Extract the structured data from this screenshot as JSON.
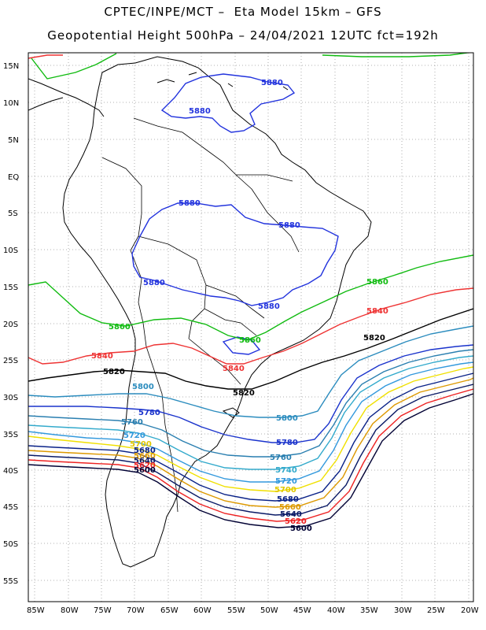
{
  "title_line1": "CPTEC/INPE/MCT –  Eta Model 15km – GFS",
  "title_line2": "Geopotential Height 500hPa – 24/04/2021 12UTC fct=192h",
  "lat_labels": [
    "15N",
    "10N",
    "5N",
    "EQ",
    "5S",
    "10S",
    "15S",
    "20S",
    "25S",
    "30S",
    "35S",
    "40S",
    "45S",
    "50S",
    "55S"
  ],
  "lon_labels": [
    "85W",
    "80W",
    "75W",
    "70W",
    "65W",
    "60W",
    "55W",
    "50W",
    "45W",
    "40W",
    "35W",
    "30W",
    "25W",
    "20W"
  ],
  "contours": [
    {
      "value": "5880",
      "color": "#2233dd",
      "labels": [
        "5880",
        "5880",
        "5880",
        "5880",
        "5880",
        "5880"
      ]
    },
    {
      "value": "5860",
      "color": "#11bb11",
      "labels": [
        "5860",
        "5860",
        "5860"
      ]
    },
    {
      "value": "5840",
      "color": "#ee3333",
      "labels": [
        "5840",
        "5840",
        "5840"
      ]
    },
    {
      "value": "5820",
      "color": "#000000",
      "labels": [
        "5820",
        "5820",
        "5820"
      ]
    },
    {
      "value": "5800",
      "color": "#2b8cbe",
      "labels": [
        "5800",
        "5800"
      ]
    },
    {
      "value": "5780",
      "color": "#1a33cc",
      "labels": [
        "5780",
        "5780"
      ]
    },
    {
      "value": "5760",
      "color": "#2a7fb0",
      "labels": [
        "5760",
        "5760"
      ]
    },
    {
      "value": "5740",
      "color": "#33aacc",
      "labels": [
        "5740"
      ]
    },
    {
      "value": "5720",
      "color": "#3399dd",
      "labels": [
        "5720",
        "5720"
      ]
    },
    {
      "value": "5700",
      "color": "#f0e000",
      "labels": [
        "5700",
        "5700"
      ]
    },
    {
      "value": "5680",
      "color": "#0a2288",
      "labels": [
        "5680",
        "5680"
      ]
    },
    {
      "value": "5660",
      "color": "#dd9900",
      "labels": [
        "5660",
        "5660"
      ]
    },
    {
      "value": "5640",
      "color": "#0a1a66",
      "labels": [
        "5640",
        "5640"
      ]
    },
    {
      "value": "5620",
      "color": "#ee2222",
      "labels": [
        "5620",
        "5620"
      ]
    },
    {
      "value": "5600",
      "color": "#000033",
      "labels": [
        "5600",
        "5600"
      ]
    }
  ]
}
